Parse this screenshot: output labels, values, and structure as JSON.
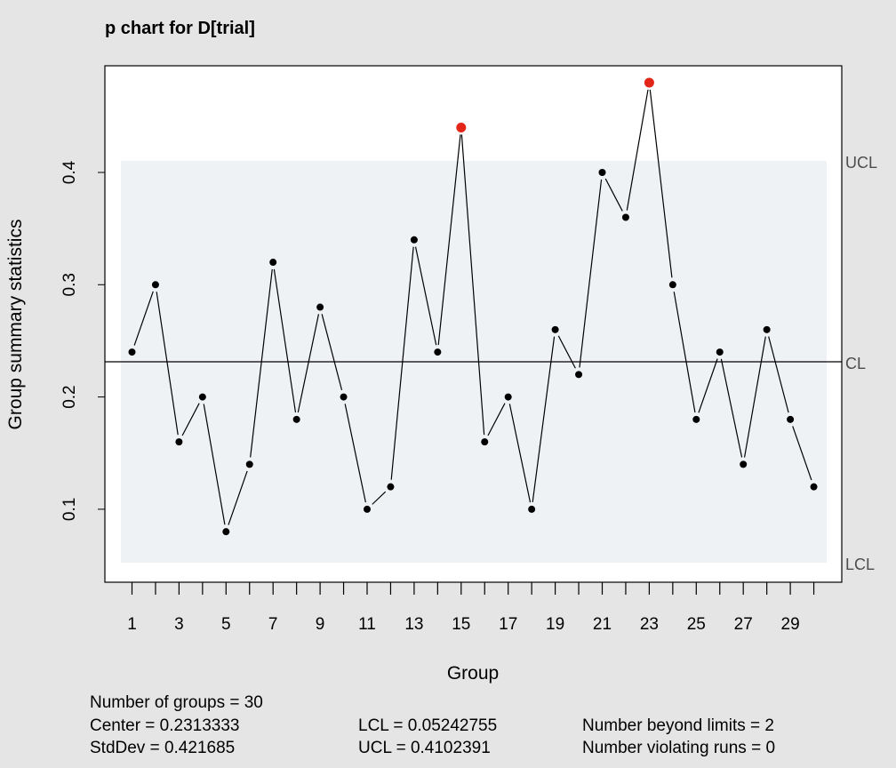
{
  "chart_data": {
    "type": "line",
    "title": "p chart for D[trial]",
    "xlabel": "Group",
    "ylabel": "Group summary statistics",
    "x": [
      1,
      2,
      3,
      4,
      5,
      6,
      7,
      8,
      9,
      10,
      11,
      12,
      13,
      14,
      15,
      16,
      17,
      18,
      19,
      20,
      21,
      22,
      23,
      24,
      25,
      26,
      27,
      28,
      29,
      30
    ],
    "values": [
      0.24,
      0.3,
      0.16,
      0.2,
      0.08,
      0.14,
      0.32,
      0.18,
      0.28,
      0.2,
      0.1,
      0.12,
      0.34,
      0.24,
      0.44,
      0.16,
      0.2,
      0.1,
      0.26,
      0.22,
      0.4,
      0.36,
      0.48,
      0.3,
      0.18,
      0.24,
      0.14,
      0.26,
      0.18,
      0.12
    ],
    "x_tick_labels": [
      "1",
      "3",
      "5",
      "7",
      "9",
      "11",
      "13",
      "15",
      "17",
      "19",
      "21",
      "23",
      "25",
      "27",
      "29"
    ],
    "y_ticks": [
      "0.1",
      "0.2",
      "0.3",
      "0.4"
    ],
    "ylim": [
      0.035,
      0.495
    ],
    "center": 0.2313333,
    "lcl": 0.05242755,
    "ucl": 0.4102391,
    "limit_labels": {
      "ucl": "UCL",
      "cl": "CL",
      "lcl": "LCL"
    },
    "beyond_limits_groups": [
      15,
      23
    ],
    "colors": {
      "background": "#e5e5e5",
      "plot_bg": "#ffffff",
      "limits_band": "#eff2f5",
      "points": "#000000",
      "violations": "#e32618",
      "center_line": "#000000",
      "limit_label": "#4d4d4d"
    }
  },
  "stats": {
    "groups": "Number of groups = 30",
    "center": "Center = 0.2313333",
    "stddev": "StdDev = 0.421685",
    "lcl": "LCL = 0.05242755",
    "ucl": "UCL = 0.4102391",
    "beyond": "Number beyond limits = 2",
    "runs": "Number violating runs = 0"
  }
}
